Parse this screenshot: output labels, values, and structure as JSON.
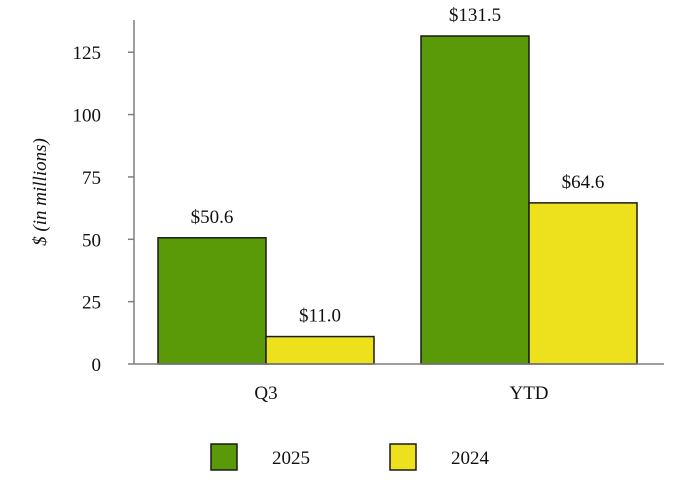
{
  "chart_data": {
    "type": "bar",
    "categories": [
      "Q3",
      "YTD"
    ],
    "series": [
      {
        "name": "2025",
        "values": [
          50.6,
          131.5
        ],
        "labels": [
          "$50.6",
          "$131.5"
        ]
      },
      {
        "name": "2024",
        "values": [
          11.0,
          64.6
        ],
        "labels": [
          "$11.0",
          "$64.6"
        ]
      }
    ],
    "title": "",
    "xlabel": "",
    "ylabel": "$ (in millions)",
    "ylim": [
      0,
      131.5
    ],
    "yticks": [
      0,
      25,
      50,
      75,
      100,
      125
    ],
    "grid": false,
    "legend_position": "bottom"
  },
  "colors": {
    "series": [
      "#5a9a08",
      "#ede01c"
    ],
    "outline": "#1a1a1a",
    "axis": "#7f7f7f"
  }
}
